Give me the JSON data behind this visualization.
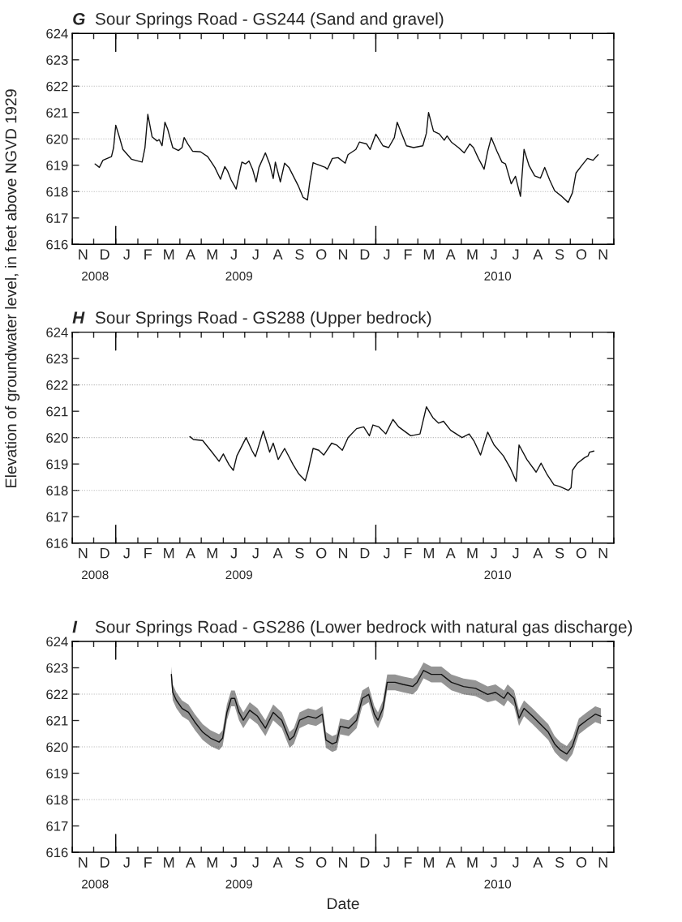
{
  "chart_data": [
    {
      "type": "line",
      "title": "G Sour Springs Road - GS244 (Sand and gravel)",
      "ylabel": "Elevation of groundwater level, in feet above NGVD 1929",
      "xlim": [
        "2008-11-01",
        "2010-12-01"
      ],
      "ylim": [
        616,
        624
      ],
      "yticks": [
        616,
        617,
        618,
        619,
        620,
        621,
        622,
        623,
        624
      ],
      "xticks": [
        {
          "value": "2008-11-01",
          "label": null
        },
        {
          "value": "2008-12-01",
          "label": null
        },
        {
          "value": "2009-01-01",
          "label": null
        },
        {
          "value": "2009-02-01",
          "label": null
        },
        {
          "value": "2009-03-01",
          "label": null
        },
        {
          "value": "2009-04-01",
          "label": null
        },
        {
          "value": "2009-05-01",
          "label": null
        },
        {
          "value": "2009-06-01",
          "label": null
        },
        {
          "value": "2009-07-01",
          "label": null
        },
        {
          "value": "2009-08-01",
          "label": null
        },
        {
          "value": "2009-09-01",
          "label": null
        },
        {
          "value": "2009-10-01",
          "label": null
        },
        {
          "value": "2009-11-01",
          "label": null
        },
        {
          "value": "2009-12-01",
          "label": null
        },
        {
          "value": "2010-01-01",
          "label": null
        },
        {
          "value": "2010-02-01",
          "label": null
        },
        {
          "value": "2010-03-01",
          "label": null
        },
        {
          "value": "2010-04-01",
          "label": null
        },
        {
          "value": "2010-05-01",
          "label": null
        },
        {
          "value": "2010-06-01",
          "label": null
        },
        {
          "value": "2010-07-01",
          "label": null
        },
        {
          "value": "2010-08-01",
          "label": null
        },
        {
          "value": "2010-09-01",
          "label": null
        },
        {
          "value": "2010-10-01",
          "label": null
        },
        {
          "value": "2010-11-01",
          "label": null
        },
        {
          "value": "2010-12-01",
          "label": null
        },
        {
          "value": "2008-12-03",
          "label": "2008"
        },
        {
          "value": "2009-06-23",
          "label": "2009"
        },
        {
          "value": "2010-06-21",
          "label": "2010"
        }
      ],
      "annotations": [
        "N",
        "D",
        "J",
        "F",
        "M",
        "A",
        "M",
        "J",
        "J",
        "A",
        "S",
        "O",
        "N",
        "D",
        "J",
        "F",
        "M",
        "A",
        "M",
        "J",
        "J",
        "A",
        "S",
        "O",
        "N"
      ],
      "ref_lines": [
        {
          "axis": "y",
          "value": 618,
          "color": "#b4b4b4",
          "line_style": "dotted"
        },
        {
          "axis": "y",
          "value": 620,
          "color": "#b4b4b4",
          "line_style": "dotted"
        },
        {
          "axis": "y",
          "value": 622,
          "color": "#b4b4b4",
          "line_style": "dotted"
        }
      ],
      "series": [
        {
          "color": "#111111",
          "x": [
            "2008-12-03",
            "2008-12-09",
            "2008-12-14",
            "2008-12-26",
            "2008-12-29",
            "2009-01-01",
            "2009-01-06",
            "2009-01-11",
            "2009-01-23",
            "2009-02-07",
            "2009-02-11",
            "2009-02-15",
            "2009-02-21",
            "2009-02-28",
            "2009-03-03",
            "2009-03-07",
            "2009-03-11",
            "2009-03-15",
            "2009-03-22",
            "2009-03-30",
            "2009-04-04",
            "2009-04-07",
            "2009-04-12",
            "2009-04-19",
            "2009-04-30",
            "2009-05-10",
            "2009-05-20",
            "2009-05-28",
            "2009-06-03",
            "2009-06-07",
            "2009-06-12",
            "2009-06-19",
            "2009-06-23",
            "2009-06-27",
            "2009-07-02",
            "2009-07-07",
            "2009-07-12",
            "2009-07-17",
            "2009-07-21",
            "2009-07-30",
            "2009-08-05",
            "2009-08-10",
            "2009-08-13",
            "2009-08-20",
            "2009-08-26",
            "2009-09-01",
            "2009-09-14",
            "2009-09-21",
            "2009-09-27",
            "2009-09-30",
            "2009-10-05",
            "2009-10-09",
            "2009-10-22",
            "2009-10-25",
            "2009-11-01",
            "2009-11-09",
            "2009-11-19",
            "2009-11-23",
            "2009-12-04",
            "2009-12-09",
            "2009-12-19",
            "2009-12-24",
            "2010-01-01",
            "2010-01-11",
            "2010-01-19",
            "2010-01-27",
            "2010-01-31",
            "2010-02-06",
            "2010-02-13",
            "2010-02-23",
            "2010-03-08",
            "2010-03-13",
            "2010-03-16",
            "2010-03-23",
            "2010-03-31",
            "2010-04-07",
            "2010-04-11",
            "2010-04-17",
            "2010-04-27",
            "2010-05-05",
            "2010-05-13",
            "2010-05-18",
            "2010-05-25",
            "2010-06-02",
            "2010-06-07",
            "2010-06-12",
            "2010-06-20",
            "2010-06-27",
            "2010-07-02",
            "2010-07-10",
            "2010-07-16",
            "2010-07-23",
            "2010-07-28",
            "2010-08-04",
            "2010-08-12",
            "2010-08-20",
            "2010-08-26",
            "2010-09-02",
            "2010-09-09",
            "2010-09-19",
            "2010-09-28",
            "2010-10-04",
            "2010-10-09",
            "2010-10-17",
            "2010-10-25",
            "2010-11-02",
            "2010-11-09"
          ],
          "values": [
            619.05,
            618.92,
            619.19,
            619.33,
            619.67,
            620.52,
            620.08,
            619.6,
            619.23,
            619.12,
            619.67,
            620.93,
            620.08,
            619.92,
            619.97,
            619.74,
            620.63,
            620.36,
            619.67,
            619.56,
            619.67,
            620.05,
            619.81,
            619.53,
            619.51,
            619.33,
            618.92,
            618.47,
            618.95,
            618.78,
            618.44,
            618.1,
            618.64,
            619.12,
            619.05,
            619.16,
            618.85,
            618.37,
            618.92,
            619.47,
            619.05,
            618.5,
            619.12,
            618.37,
            619.08,
            618.92,
            618.23,
            617.78,
            617.68,
            618.3,
            619.1,
            619.05,
            618.92,
            618.85,
            619.26,
            619.29,
            619.08,
            619.4,
            619.6,
            619.88,
            619.81,
            619.6,
            620.18,
            619.74,
            619.67,
            620.05,
            620.63,
            620.22,
            619.74,
            619.67,
            619.74,
            620.22,
            621.0,
            620.29,
            620.19,
            619.95,
            620.11,
            619.88,
            619.67,
            619.47,
            619.81,
            619.67,
            619.26,
            618.85,
            619.53,
            620.05,
            619.53,
            619.12,
            619.05,
            618.3,
            618.58,
            617.82,
            619.6,
            618.99,
            618.6,
            618.51,
            618.92,
            618.44,
            618.03,
            617.82,
            617.59,
            617.96,
            618.71,
            618.99,
            619.26,
            619.19,
            619.4
          ]
        }
      ]
    },
    {
      "type": "line",
      "title": "H Sour Springs Road - GS288 (Upper bedrock)",
      "xlim": [
        "2008-11-01",
        "2010-12-01"
      ],
      "ylim": [
        616,
        624
      ],
      "yticks": [
        616,
        617,
        618,
        619,
        620,
        621,
        622,
        623,
        624
      ],
      "xticks": [
        {
          "value": "2008-11-01",
          "label": null
        },
        {
          "value": "2008-12-01",
          "label": null
        },
        {
          "value": "2009-01-01",
          "label": null
        },
        {
          "value": "2009-02-01",
          "label": null
        },
        {
          "value": "2009-03-01",
          "label": null
        },
        {
          "value": "2009-04-01",
          "label": null
        },
        {
          "value": "2009-05-01",
          "label": null
        },
        {
          "value": "2009-06-01",
          "label": null
        },
        {
          "value": "2009-07-01",
          "label": null
        },
        {
          "value": "2009-08-01",
          "label": null
        },
        {
          "value": "2009-09-01",
          "label": null
        },
        {
          "value": "2009-10-01",
          "label": null
        },
        {
          "value": "2009-11-01",
          "label": null
        },
        {
          "value": "2009-12-01",
          "label": null
        },
        {
          "value": "2010-01-01",
          "label": null
        },
        {
          "value": "2010-02-01",
          "label": null
        },
        {
          "value": "2010-03-01",
          "label": null
        },
        {
          "value": "2010-04-01",
          "label": null
        },
        {
          "value": "2010-05-01",
          "label": null
        },
        {
          "value": "2010-06-01",
          "label": null
        },
        {
          "value": "2010-07-01",
          "label": null
        },
        {
          "value": "2010-08-01",
          "label": null
        },
        {
          "value": "2010-09-01",
          "label": null
        },
        {
          "value": "2010-10-01",
          "label": null
        },
        {
          "value": "2010-11-01",
          "label": null
        },
        {
          "value": "2010-12-01",
          "label": null
        },
        {
          "value": "2008-12-03",
          "label": "2008"
        },
        {
          "value": "2009-06-23",
          "label": "2009"
        },
        {
          "value": "2010-06-21",
          "label": "2010"
        }
      ],
      "annotations": [
        "N",
        "D",
        "J",
        "F",
        "M",
        "A",
        "M",
        "J",
        "J",
        "A",
        "S",
        "O",
        "N",
        "D",
        "J",
        "F",
        "M",
        "A",
        "M",
        "J",
        "J",
        "A",
        "S",
        "O",
        "N"
      ],
      "ref_lines": [
        {
          "axis": "y",
          "value": 618,
          "color": "#b4b4b4",
          "line_style": "dotted"
        },
        {
          "axis": "y",
          "value": 620,
          "color": "#b4b4b4",
          "line_style": "dotted"
        },
        {
          "axis": "y",
          "value": 622,
          "color": "#b4b4b4",
          "line_style": "dotted"
        }
      ],
      "series": [
        {
          "color": "#111111",
          "x": [
            "2009-04-15",
            "2009-04-20",
            "2009-05-03",
            "2009-05-08",
            "2009-05-16",
            "2009-05-26",
            "2009-06-01",
            "2009-06-09",
            "2009-06-15",
            "2009-06-20",
            "2009-07-03",
            "2009-07-11",
            "2009-07-16",
            "2009-07-27",
            "2009-08-05",
            "2009-08-10",
            "2009-08-17",
            "2009-08-26",
            "2009-09-07",
            "2009-09-15",
            "2009-09-24",
            "2009-09-28",
            "2009-10-05",
            "2009-10-13",
            "2009-10-20",
            "2009-10-31",
            "2009-11-07",
            "2009-11-15",
            "2009-11-23",
            "2009-12-05",
            "2009-12-15",
            "2009-12-23",
            "2009-12-28",
            "2010-01-05",
            "2010-01-15",
            "2010-01-25",
            "2010-02-02",
            "2010-02-12",
            "2010-02-19",
            "2010-03-04",
            "2010-03-13",
            "2010-03-22",
            "2010-03-30",
            "2010-04-06",
            "2010-04-16",
            "2010-05-02",
            "2010-05-12",
            "2010-05-19",
            "2010-05-28",
            "2010-06-07",
            "2010-06-16",
            "2010-06-29",
            "2010-07-09",
            "2010-07-17",
            "2010-07-21",
            "2010-08-01",
            "2010-08-14",
            "2010-08-21",
            "2010-08-29",
            "2010-09-08",
            "2010-09-16",
            "2010-09-28",
            "2010-10-02",
            "2010-10-04",
            "2010-10-11",
            "2010-10-21",
            "2010-10-26",
            "2010-10-28",
            "2010-11-03"
          ],
          "values": [
            620.04,
            619.93,
            619.89,
            619.72,
            619.45,
            619.1,
            619.38,
            618.97,
            618.76,
            619.31,
            620.0,
            619.52,
            619.28,
            620.25,
            619.45,
            619.79,
            619.17,
            619.59,
            618.97,
            618.62,
            618.37,
            618.76,
            619.59,
            619.52,
            619.34,
            619.79,
            619.72,
            619.52,
            620.0,
            620.34,
            620.41,
            620.07,
            620.48,
            620.41,
            620.14,
            620.69,
            620.41,
            620.21,
            620.07,
            620.14,
            621.17,
            620.76,
            620.55,
            620.62,
            620.28,
            620.0,
            620.14,
            619.86,
            619.34,
            620.21,
            619.72,
            619.31,
            618.83,
            618.34,
            619.72,
            619.17,
            618.69,
            619.03,
            618.62,
            618.21,
            618.15,
            618.0,
            618.1,
            618.76,
            619.03,
            619.24,
            619.31,
            619.45,
            619.49
          ]
        }
      ]
    },
    {
      "type": "line",
      "title": "I Sour Springs Road - GS286 (Lower bedrock with natural gas discharge)",
      "xlabel": "Date",
      "xlim": [
        "2008-11-01",
        "2010-12-01"
      ],
      "ylim": [
        616,
        624
      ],
      "yticks": [
        616,
        617,
        618,
        619,
        620,
        621,
        622,
        623,
        624
      ],
      "xticks": [
        {
          "value": "2008-11-01",
          "label": null
        },
        {
          "value": "2008-12-01",
          "label": null
        },
        {
          "value": "2009-01-01",
          "label": null
        },
        {
          "value": "2009-02-01",
          "label": null
        },
        {
          "value": "2009-03-01",
          "label": null
        },
        {
          "value": "2009-04-01",
          "label": null
        },
        {
          "value": "2009-05-01",
          "label": null
        },
        {
          "value": "2009-06-01",
          "label": null
        },
        {
          "value": "2009-07-01",
          "label": null
        },
        {
          "value": "2009-08-01",
          "label": null
        },
        {
          "value": "2009-09-01",
          "label": null
        },
        {
          "value": "2009-10-01",
          "label": null
        },
        {
          "value": "2009-11-01",
          "label": null
        },
        {
          "value": "2009-12-01",
          "label": null
        },
        {
          "value": "2010-01-01",
          "label": null
        },
        {
          "value": "2010-02-01",
          "label": null
        },
        {
          "value": "2010-03-01",
          "label": null
        },
        {
          "value": "2010-04-01",
          "label": null
        },
        {
          "value": "2010-05-01",
          "label": null
        },
        {
          "value": "2010-06-01",
          "label": null
        },
        {
          "value": "2010-07-01",
          "label": null
        },
        {
          "value": "2010-08-01",
          "label": null
        },
        {
          "value": "2010-09-01",
          "label": null
        },
        {
          "value": "2010-10-01",
          "label": null
        },
        {
          "value": "2010-11-01",
          "label": null
        },
        {
          "value": "2010-12-01",
          "label": null
        },
        {
          "value": "2008-12-03",
          "label": "2008"
        },
        {
          "value": "2009-06-23",
          "label": "2009"
        },
        {
          "value": "2010-06-21",
          "label": "2010"
        }
      ],
      "annotations": [
        "N",
        "D",
        "J",
        "F",
        "M",
        "A",
        "M",
        "J",
        "J",
        "A",
        "S",
        "O",
        "N",
        "D",
        "J",
        "F",
        "M",
        "A",
        "M",
        "J",
        "J",
        "A",
        "S",
        "O",
        "N"
      ],
      "ref_lines": [
        {
          "axis": "y",
          "value": 618,
          "color": "#b4b4b4",
          "line_style": "dotted"
        },
        {
          "axis": "y",
          "value": 620,
          "color": "#b4b4b4",
          "line_style": "dotted"
        },
        {
          "axis": "y",
          "value": 622,
          "color": "#b4b4b4",
          "line_style": "dotted"
        }
      ],
      "series": [
        {
          "color": "#111111",
          "x": [
            "2009-03-20",
            "2009-03-22",
            "2009-03-27",
            "2009-04-04",
            "2009-04-13",
            "2009-04-22",
            "2009-05-03",
            "2009-05-14",
            "2009-05-26",
            "2009-05-31",
            "2009-06-06",
            "2009-06-12",
            "2009-06-17",
            "2009-06-23",
            "2009-06-29",
            "2009-07-08",
            "2009-07-19",
            "2009-07-30",
            "2009-08-10",
            "2009-08-22",
            "2009-09-02",
            "2009-09-08",
            "2009-09-16",
            "2009-09-28",
            "2009-10-09",
            "2009-10-18",
            "2009-10-23",
            "2009-11-01",
            "2009-11-07",
            "2009-11-12",
            "2009-11-24",
            "2009-12-05",
            "2009-12-13",
            "2009-12-22",
            "2009-12-30",
            "2010-01-04",
            "2010-01-11",
            "2010-01-17",
            "2010-01-28",
            "2010-02-08",
            "2010-02-22",
            "2010-02-28",
            "2010-03-09",
            "2010-03-20",
            "2010-04-03",
            "2010-04-17",
            "2010-05-04",
            "2010-05-21",
            "2010-06-07",
            "2010-06-18",
            "2010-06-30",
            "2010-07-05",
            "2010-07-14",
            "2010-07-21",
            "2010-07-28",
            "2010-08-09",
            "2010-08-20",
            "2010-08-31",
            "2010-09-09",
            "2010-09-17",
            "2010-09-26",
            "2010-10-04",
            "2010-10-13",
            "2010-10-24",
            "2010-11-05",
            "2010-11-13"
          ],
          "values": [
            622.75,
            622.07,
            621.77,
            621.46,
            621.31,
            620.94,
            620.56,
            620.33,
            620.18,
            620.33,
            621.31,
            621.84,
            621.84,
            621.31,
            621.01,
            621.39,
            621.16,
            620.71,
            621.31,
            621.01,
            620.26,
            620.41,
            621.01,
            621.16,
            621.09,
            621.24,
            620.26,
            620.11,
            620.18,
            620.78,
            620.71,
            621.01,
            621.84,
            621.99,
            621.24,
            621.01,
            621.46,
            622.45,
            622.45,
            622.37,
            622.29,
            622.45,
            622.9,
            622.75,
            622.75,
            622.45,
            622.29,
            622.22,
            621.99,
            622.07,
            621.84,
            622.07,
            621.84,
            621.09,
            621.46,
            621.16,
            620.86,
            620.56,
            620.11,
            619.88,
            619.73,
            620.03,
            620.78,
            621.01,
            621.24,
            621.16
          ],
          "lower": [
            622.45,
            621.77,
            621.47,
            621.16,
            621.01,
            620.64,
            620.26,
            620.03,
            619.88,
            620.03,
            621.01,
            621.54,
            621.54,
            621.01,
            620.71,
            621.09,
            620.86,
            620.41,
            621.01,
            620.71,
            619.96,
            620.11,
            620.71,
            620.86,
            620.79,
            620.94,
            619.96,
            619.81,
            619.88,
            620.48,
            620.41,
            620.71,
            621.54,
            621.69,
            620.94,
            620.71,
            621.16,
            622.15,
            622.15,
            622.07,
            621.99,
            622.15,
            622.6,
            622.45,
            622.45,
            622.15,
            621.99,
            621.92,
            621.69,
            621.77,
            621.54,
            621.77,
            621.54,
            620.79,
            621.16,
            620.86,
            620.56,
            620.26,
            619.81,
            619.58,
            619.43,
            619.73,
            620.48,
            620.71,
            620.94,
            620.86
          ],
          "upper": [
            623.05,
            622.37,
            622.07,
            621.76,
            621.61,
            621.24,
            620.86,
            620.63,
            620.48,
            620.63,
            621.61,
            622.14,
            622.14,
            621.61,
            621.31,
            621.69,
            621.46,
            621.01,
            621.61,
            621.31,
            620.56,
            620.71,
            621.31,
            621.46,
            621.39,
            621.54,
            620.56,
            620.41,
            620.48,
            621.08,
            621.01,
            621.31,
            622.14,
            622.29,
            621.54,
            621.31,
            621.76,
            622.75,
            622.75,
            622.67,
            622.59,
            622.75,
            623.2,
            623.05,
            623.05,
            622.75,
            622.59,
            622.52,
            622.29,
            622.37,
            622.14,
            622.37,
            622.14,
            621.39,
            621.76,
            621.46,
            621.16,
            620.86,
            620.41,
            620.18,
            620.03,
            620.33,
            621.08,
            621.31,
            621.54,
            621.46
          ]
        }
      ]
    }
  ]
}
